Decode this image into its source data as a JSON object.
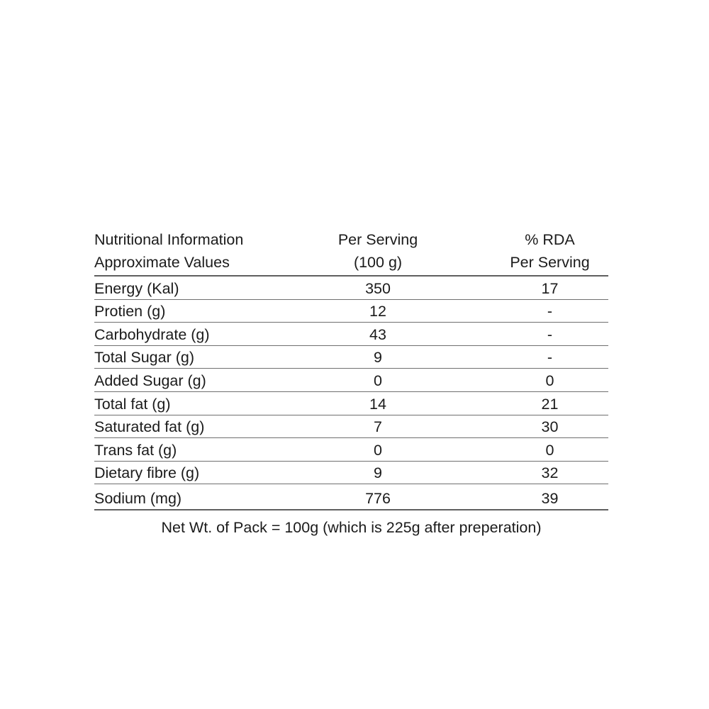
{
  "table": {
    "header": {
      "col1_line1": "Nutritional Information",
      "col1_line2": "Approximate Values",
      "col2_line1": "Per Serving",
      "col2_line2": "(100 g)",
      "col3_line1": "% RDA",
      "col3_line2": "Per Serving"
    },
    "rows": [
      {
        "label": "Energy (Kal)",
        "per_serving": "350",
        "rda": "17"
      },
      {
        "label": "Protien (g)",
        "per_serving": "12",
        "rda": "-"
      },
      {
        "label": "Carbohydrate (g)",
        "per_serving": "43",
        "rda": "-"
      },
      {
        "label": "Total Sugar (g)",
        "per_serving": "9",
        "rda": "-"
      },
      {
        "label": "Added Sugar (g)",
        "per_serving": "0",
        "rda": "0"
      },
      {
        "label": "Total fat (g)",
        "per_serving": "14",
        "rda": "21"
      },
      {
        "label": "Saturated fat (g)",
        "per_serving": "7",
        "rda": "30"
      },
      {
        "label": "Trans fat (g)",
        "per_serving": "0",
        "rda": "0"
      },
      {
        "label": "Dietary fibre (g)",
        "per_serving": "9",
        "rda": "32"
      },
      {
        "label": "Sodium (mg)",
        "per_serving": "776",
        "rda": "39"
      }
    ],
    "footer": "Net Wt. of Pack = 100g (which is 225g after preperation)"
  },
  "colors": {
    "text": "#1b1b1b",
    "row_line": "#6f6f6f",
    "heavy_line": "#5f5f5f",
    "background": "#ffffff"
  }
}
